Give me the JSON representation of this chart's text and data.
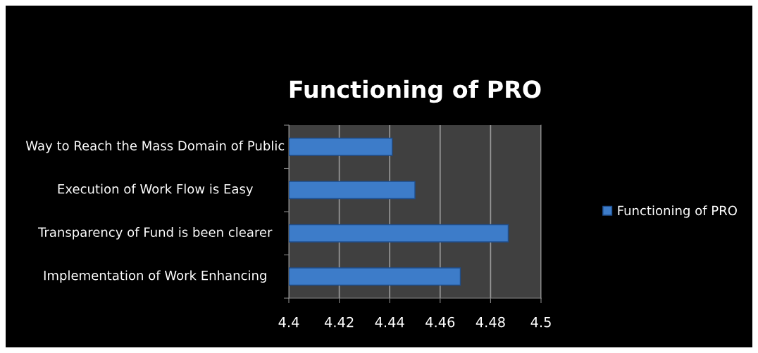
{
  "chart_data": {
    "type": "bar",
    "orientation": "horizontal",
    "title": "Functioning of PRO",
    "categories": [
      "Way to Reach the Mass Domain of Public",
      "Execution of Work Flow is Easy",
      "Transparency of Fund is been clearer",
      "Implementation of Work Enhancing"
    ],
    "series": [
      {
        "name": "Functioning of PRO",
        "color": "#3d7cc9",
        "values": [
          4.441,
          4.45,
          4.487,
          4.468
        ]
      }
    ],
    "xlim": [
      4.4,
      4.5
    ],
    "xticks": [
      4.4,
      4.42,
      4.44,
      4.46,
      4.48,
      4.5
    ],
    "grid": "x",
    "legend": "right"
  }
}
